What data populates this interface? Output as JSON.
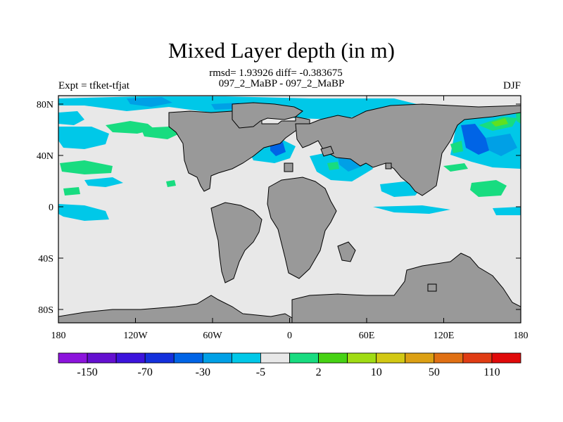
{
  "title": "Mixed Layer depth (in m)",
  "stats_line": "rmsd= 1.93926 diff= -0.383675",
  "comparison": "097_2_MaBP - 097_2_MaBP",
  "expt": "Expt = tfket-tfjat",
  "season": "DJF",
  "colors": {
    "land": "#999999",
    "ocean_neutral": "#e8e8e8",
    "shallow_light": "#00c8e8",
    "shallow_mid": "#00a0e6",
    "shallow_deep": "#0064e6",
    "deep_pos": "#18dc80",
    "deep_pos2": "#60e020"
  },
  "map": {
    "lat_ticks": [
      "80N",
      "40N",
      "0",
      "40S",
      "80S"
    ],
    "lon_ticks": [
      "180",
      "120W",
      "60W",
      "0",
      "60E",
      "120E",
      "180"
    ]
  },
  "colorbar": {
    "colors": [
      "#8c14dc",
      "#6410d0",
      "#3c14dc",
      "#1430dc",
      "#0064e6",
      "#00a0e6",
      "#00c8e8",
      "#e8e8e8",
      "#18dc80",
      "#46d214",
      "#a0dc14",
      "#d2c814",
      "#dca014",
      "#e07014",
      "#e03c14",
      "#e00a0a"
    ],
    "labels": [
      "-150",
      "-70",
      "-30",
      "-5",
      "2",
      "10",
      "50",
      "110"
    ]
  }
}
